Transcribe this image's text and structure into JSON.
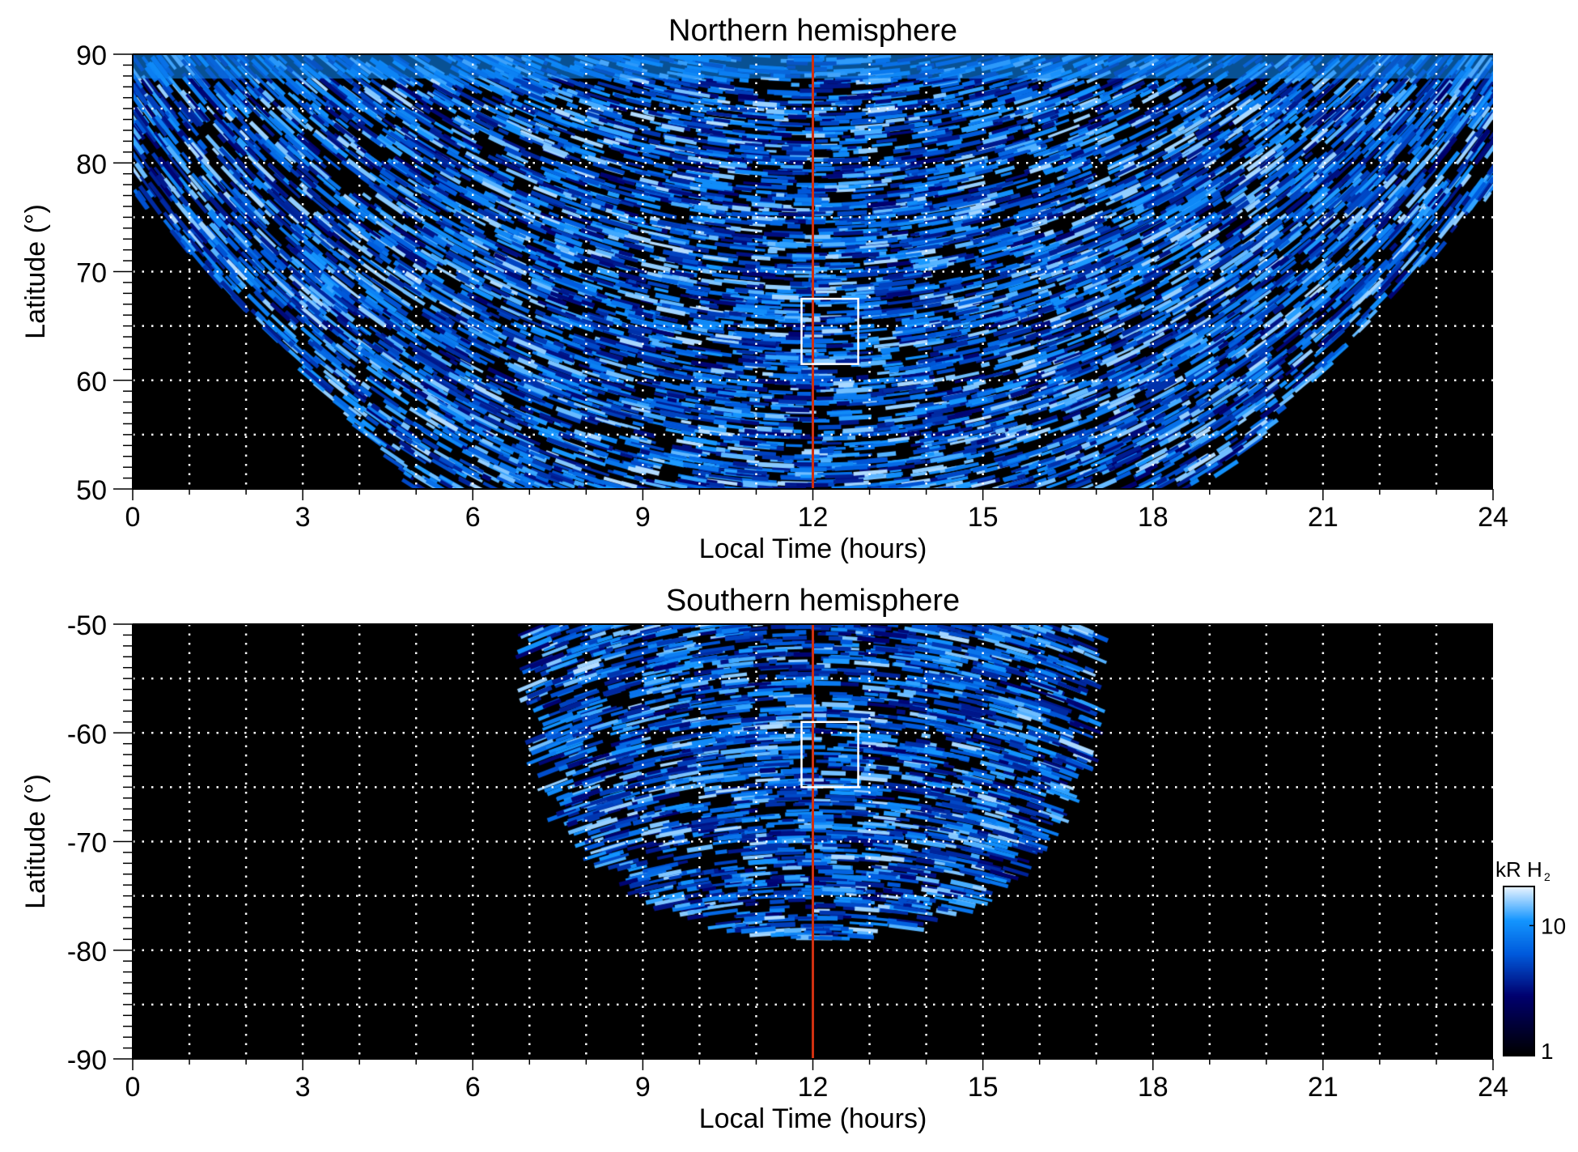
{
  "chart_data": [
    {
      "type": "heatmap",
      "title": "Northern hemisphere",
      "xlabel": "Local Time (hours)",
      "ylabel": "Latitude (°)",
      "xlim": [
        0,
        24
      ],
      "ylim": [
        50,
        90
      ],
      "xticks": [
        "0",
        "3",
        "6",
        "9",
        "12",
        "15",
        "18",
        "21",
        "24"
      ],
      "yticks": [
        "50",
        "60",
        "70",
        "80",
        "90"
      ],
      "yticks_values": [
        50,
        60,
        70,
        80,
        90
      ],
      "grid": true,
      "marker_line_lt": 12,
      "box": {
        "lt": [
          11.8,
          12.8
        ],
        "lat": [
          61.5,
          67.5
        ]
      },
      "coverage": {
        "lt_low_lat": [
          5,
          19
        ],
        "lt_high_lat": [
          0,
          24
        ]
      }
    },
    {
      "type": "heatmap",
      "title": "Southern hemisphere",
      "xlabel": "Local Time (hours)",
      "ylabel": "Latitude (°)",
      "xlim": [
        0,
        24
      ],
      "ylim": [
        -90,
        -50
      ],
      "xticks": [
        "0",
        "3",
        "6",
        "9",
        "12",
        "15",
        "18",
        "21",
        "24"
      ],
      "yticks": [
        "-90",
        "-80",
        "-70",
        "-60",
        "-50"
      ],
      "yticks_values": [
        -90,
        -80,
        -70,
        -60,
        -50
      ],
      "grid": true,
      "marker_line_lt": 12,
      "box": {
        "lt": [
          11.8,
          12.8
        ],
        "lat": [
          -65,
          -59
        ]
      },
      "coverage": {
        "lt_low_lat": [
          7,
          17
        ],
        "lat_min": -79
      }
    }
  ],
  "colorbar": {
    "label": "kR H",
    "label_sub": "2",
    "scale": "log",
    "range": [
      1,
      20
    ],
    "ticks": [
      "1",
      "10"
    ],
    "tick_values": [
      1,
      10
    ]
  },
  "colors": {
    "marker_line": "#d03010",
    "box": "#ffffff",
    "grid": "#ffffff"
  }
}
